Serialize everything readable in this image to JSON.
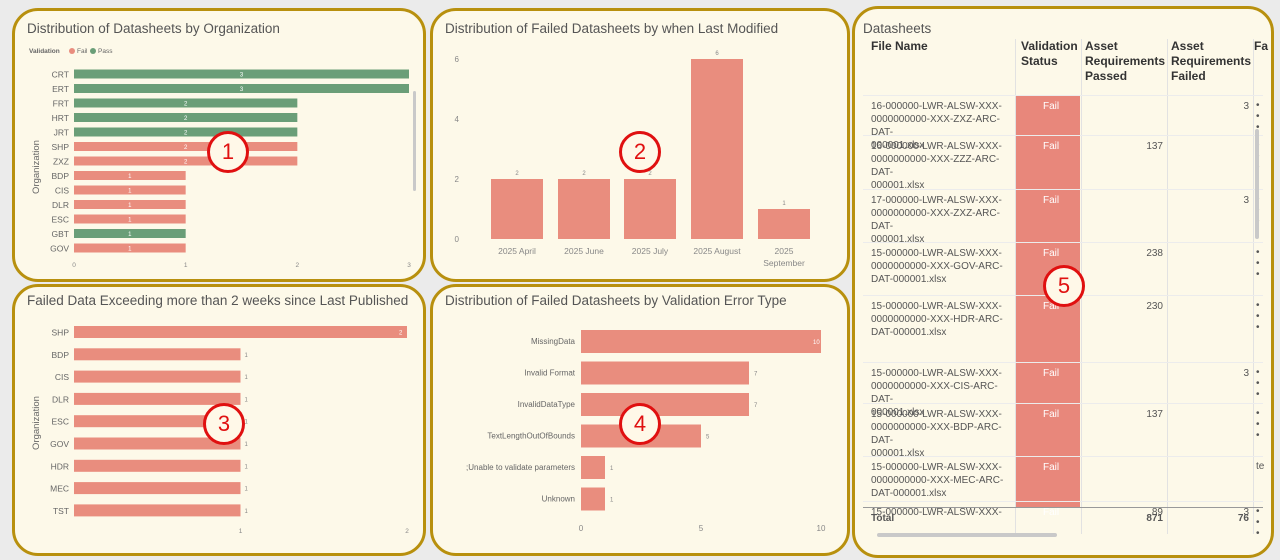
{
  "colors": {
    "fail": "#e98d7e",
    "pass": "#6a9e78",
    "border": "#b8900e",
    "badge": "#e01010"
  },
  "badges": [
    "1",
    "2",
    "3",
    "4",
    "5"
  ],
  "panel1": {
    "title": "Distribution of Datasheets by Organization",
    "legend": {
      "label": "Validation",
      "items": [
        "Fail",
        "Pass"
      ]
    },
    "chart_data": {
      "type": "bar",
      "orientation": "horizontal",
      "title": "Distribution of Datasheets by Organization",
      "ylabel": "Organization",
      "xlim": [
        0,
        3
      ],
      "categories": [
        "CRT",
        "ERT",
        "FRT",
        "HRT",
        "JRT",
        "SHP",
        "ZXZ",
        "BDP",
        "CIS",
        "DLR",
        "ESC",
        "GBT",
        "GOV"
      ],
      "values": [
        3,
        3,
        2,
        2,
        2,
        2,
        2,
        1,
        1,
        1,
        1,
        1,
        1
      ],
      "status": [
        "Pass",
        "Pass",
        "Pass",
        "Pass",
        "Pass",
        "Fail",
        "Fail",
        "Fail",
        "Fail",
        "Fail",
        "Fail",
        "Pass",
        "Fail"
      ],
      "ticks": [
        "0",
        "1",
        "2",
        "3"
      ]
    }
  },
  "panel2": {
    "title": "Distribution of Failed Datasheets by when Last Modified",
    "chart_data": {
      "type": "bar",
      "title": "Distribution of Failed Datasheets by when Last Modified",
      "categories": [
        [
          "2025 April"
        ],
        [
          "2025 June"
        ],
        [
          "2025 July"
        ],
        [
          "2025 August"
        ],
        [
          "2025",
          "September"
        ]
      ],
      "values": [
        2,
        2,
        2,
        6,
        1
      ],
      "ylim": [
        0,
        6
      ],
      "ticks": [
        "0",
        "2",
        "4",
        "6"
      ]
    }
  },
  "panel3": {
    "title": "Failed Data Exceeding more than 2 weeks since Last Published",
    "chart_data": {
      "type": "bar",
      "orientation": "horizontal",
      "title": "Failed Data Exceeding more than 2 weeks since Last Published",
      "ylabel": "Organization",
      "xlim": [
        0,
        2
      ],
      "categories": [
        "SHP",
        "BDP",
        "CIS",
        "DLR",
        "ESC",
        "GOV",
        "HDR",
        "MEC",
        "TST"
      ],
      "values": [
        2,
        1,
        1,
        1,
        1,
        1,
        1,
        1,
        1
      ],
      "ticks": [
        "1",
        "2"
      ]
    }
  },
  "panel4": {
    "title": "Distribution of Failed Datasheets by Validation Error Type",
    "chart_data": {
      "type": "bar",
      "orientation": "horizontal",
      "title": "Distribution of Failed Datasheets by Validation Error Type",
      "xlim": [
        0,
        10
      ],
      "categories": [
        "MissingData",
        "Invalid Format",
        "InvalidDataType",
        "TextLengthOutOfBounds",
        ";Unable to validate parameters",
        "Unknown"
      ],
      "values": [
        10,
        7,
        7,
        5,
        1,
        1
      ],
      "ticks": [
        "0",
        "5",
        "10"
      ]
    }
  },
  "panel5": {
    "title": "Datasheets",
    "headers": {
      "file": "File Name",
      "status": [
        "Validation",
        "Status"
      ],
      "passed": [
        "Asset",
        "Requirements",
        "Passed"
      ],
      "failed": [
        "Asset",
        "Requirements",
        "Failed"
      ],
      "extra": "Fa"
    },
    "rows": [
      {
        "file": [
          "16-000000-LWR-ALSW-XXX-",
          "0000000000-XXX-ZXZ-ARC-DAT-",
          "000001.xlsx"
        ],
        "status": "Fail",
        "passed": "",
        "failed": "3"
      },
      {
        "file": [
          "16-000000-LWR-ALSW-XXX-",
          "0000000000-XXX-ZZZ-ARC-DAT-",
          "000001.xlsx"
        ],
        "status": "Fail",
        "passed": "137",
        "failed": ""
      },
      {
        "file": [
          "17-000000-LWR-ALSW-XXX-",
          "0000000000-XXX-ZXZ-ARC-DAT-",
          "000001.xlsx"
        ],
        "status": "Fail",
        "passed": "",
        "failed": "3"
      },
      {
        "file": [
          "15-000000-LWR-ALSW-XXX-",
          "0000000000-XXX-GOV-ARC-",
          "DAT-000001.xlsx"
        ],
        "status": "Fail",
        "passed": "238",
        "failed": ""
      },
      {
        "file": [
          "15-000000-LWR-ALSW-XXX-",
          "0000000000-XXX-HDR-ARC-",
          "DAT-000001.xlsx"
        ],
        "status": "Fail",
        "passed": "230",
        "failed": ""
      },
      {
        "file": [
          "15-000000-LWR-ALSW-XXX-",
          "0000000000-XXX-CIS-ARC-DAT-",
          "000001.xlsx"
        ],
        "status": "Fail",
        "passed": "",
        "failed": "3"
      },
      {
        "file": [
          "15-000000-LWR-ALSW-XXX-",
          "0000000000-XXX-BDP-ARC-DAT-",
          "000001.xlsx"
        ],
        "status": "Fail",
        "passed": "137",
        "failed": ""
      },
      {
        "file": [
          "15-000000-LWR-ALSW-XXX-",
          "0000000000-XXX-MEC-ARC-",
          "DAT-000001.xlsx"
        ],
        "status": "Fail",
        "passed": "",
        "failed": "",
        "extra": "te"
      },
      {
        "file": [
          "15-000000-LWR-ALSW-XXX-"
        ],
        "status": "Fail",
        "passed": "89",
        "failed": "3"
      }
    ],
    "total": {
      "label": "Total",
      "passed": "871",
      "failed": "76"
    }
  }
}
